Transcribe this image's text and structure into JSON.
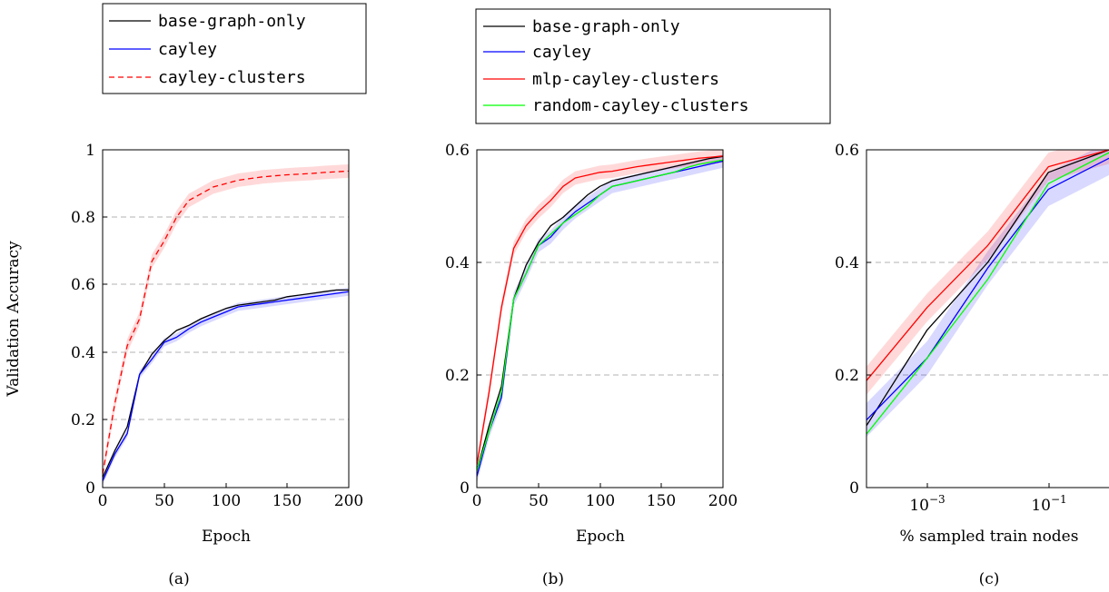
{
  "figure": {
    "ylabel": "Validation Accuracy"
  },
  "colors": {
    "base": "#000000",
    "cayley": "#0000ff",
    "red": "#ff0000",
    "green": "#00ff00",
    "grid": "#b3b3b3"
  },
  "chart_data": [
    {
      "type": "line",
      "panel_label": "(a)",
      "xlabel": "Epoch",
      "ylabel": "Validation Accuracy",
      "xlim": [
        0,
        200
      ],
      "ylim": [
        0,
        1
      ],
      "xticks": [
        0,
        50,
        100,
        150,
        200
      ],
      "xtick_labels": [
        "0",
        "50",
        "100",
        "150",
        "200"
      ],
      "yticks": [
        0,
        0.2,
        0.4,
        0.6,
        0.8,
        1
      ],
      "ytick_labels": [
        "0",
        "0.2",
        "0.4",
        "0.6",
        "0.8",
        "1"
      ],
      "grid": "horizontal dashed",
      "legend_position": "above",
      "series": [
        {
          "name": "base-graph-only",
          "color": "#000000",
          "style": "solid",
          "x": [
            0,
            10,
            20,
            30,
            40,
            50,
            60,
            70,
            80,
            90,
            100,
            110,
            120,
            130,
            140,
            150,
            160,
            170,
            180,
            190,
            200
          ],
          "y": [
            0.03,
            0.11,
            0.18,
            0.335,
            0.395,
            0.435,
            0.465,
            0.48,
            0.5,
            0.515,
            0.53,
            0.54,
            0.545,
            0.55,
            0.555,
            0.565,
            0.57,
            0.575,
            0.58,
            0.585,
            0.585
          ]
        },
        {
          "name": "cayley",
          "color": "#0000ff",
          "style": "solid",
          "x": [
            0,
            10,
            20,
            30,
            40,
            50,
            60,
            70,
            80,
            90,
            100,
            110,
            120,
            130,
            140,
            150,
            160,
            170,
            180,
            190,
            200
          ],
          "y": [
            0.02,
            0.1,
            0.16,
            0.335,
            0.38,
            0.43,
            0.445,
            0.47,
            0.49,
            0.505,
            0.52,
            0.535,
            0.54,
            0.545,
            0.55,
            0.555,
            0.56,
            0.565,
            0.57,
            0.575,
            0.58
          ],
          "band": 0.012
        },
        {
          "name": "cayley-clusters",
          "color": "#ff0000",
          "style": "dashed",
          "x": [
            0,
            10,
            20,
            30,
            40,
            50,
            60,
            70,
            80,
            90,
            100,
            110,
            120,
            130,
            140,
            150,
            160,
            170,
            180,
            190,
            200
          ],
          "y": [
            0.04,
            0.25,
            0.42,
            0.5,
            0.67,
            0.73,
            0.8,
            0.85,
            0.87,
            0.89,
            0.9,
            0.91,
            0.915,
            0.92,
            0.923,
            0.926,
            0.928,
            0.93,
            0.933,
            0.935,
            0.937
          ],
          "band": 0.02
        }
      ]
    },
    {
      "type": "line",
      "panel_label": "(b)",
      "xlabel": "Epoch",
      "xlim": [
        0,
        200
      ],
      "ylim": [
        0,
        0.6
      ],
      "xticks": [
        0,
        50,
        100,
        150,
        200
      ],
      "xtick_labels": [
        "0",
        "50",
        "100",
        "150",
        "200"
      ],
      "yticks": [
        0,
        0.2,
        0.4,
        0.6
      ],
      "ytick_labels": [
        "0",
        "0.2",
        "0.4",
        "0.6"
      ],
      "grid": "horizontal dashed",
      "legend_position": "above",
      "series": [
        {
          "name": "base-graph-only",
          "color": "#000000",
          "style": "solid",
          "x": [
            0,
            10,
            20,
            30,
            40,
            50,
            60,
            70,
            80,
            90,
            100,
            110,
            120,
            130,
            140,
            150,
            160,
            170,
            180,
            190,
            200
          ],
          "y": [
            0.03,
            0.11,
            0.18,
            0.335,
            0.395,
            0.435,
            0.465,
            0.48,
            0.5,
            0.52,
            0.535,
            0.545,
            0.55,
            0.555,
            0.56,
            0.565,
            0.57,
            0.575,
            0.58,
            0.585,
            0.588
          ]
        },
        {
          "name": "cayley",
          "color": "#0000ff",
          "style": "solid",
          "x": [
            0,
            10,
            20,
            30,
            40,
            50,
            60,
            70,
            80,
            90,
            100,
            110,
            120,
            130,
            140,
            150,
            160,
            170,
            180,
            190,
            200
          ],
          "y": [
            0.02,
            0.1,
            0.16,
            0.335,
            0.38,
            0.43,
            0.445,
            0.47,
            0.49,
            0.505,
            0.52,
            0.535,
            0.54,
            0.545,
            0.55,
            0.555,
            0.56,
            0.565,
            0.57,
            0.575,
            0.58
          ],
          "band": 0.012
        },
        {
          "name": "mlp-cayley-clusters",
          "color": "#ff0000",
          "style": "solid",
          "x": [
            0,
            10,
            20,
            30,
            40,
            50,
            60,
            70,
            80,
            90,
            100,
            110,
            120,
            130,
            140,
            150,
            160,
            170,
            180,
            190,
            200
          ],
          "y": [
            0.04,
            0.17,
            0.32,
            0.425,
            0.465,
            0.49,
            0.51,
            0.535,
            0.55,
            0.555,
            0.56,
            0.562,
            0.566,
            0.57,
            0.573,
            0.576,
            0.579,
            0.582,
            0.585,
            0.587,
            0.589
          ],
          "band": 0.012
        },
        {
          "name": "random-cayley-clusters",
          "color": "#00ff00",
          "style": "solid",
          "x": [
            0,
            10,
            20,
            30,
            40,
            50,
            60,
            70,
            80,
            90,
            100,
            110,
            120,
            130,
            140,
            150,
            160,
            170,
            180,
            190,
            200
          ],
          "y": [
            0.03,
            0.1,
            0.17,
            0.335,
            0.38,
            0.43,
            0.45,
            0.47,
            0.485,
            0.5,
            0.52,
            0.535,
            0.54,
            0.545,
            0.55,
            0.555,
            0.56,
            0.568,
            0.574,
            0.578,
            0.582
          ]
        }
      ]
    },
    {
      "type": "line",
      "panel_label": "(c)",
      "xlabel": "% sampled train nodes",
      "xscale": "log",
      "xlim": [
        0.0001,
        1
      ],
      "ylim": [
        0,
        0.6
      ],
      "xticks": [
        0.001,
        0.1
      ],
      "xtick_labels": [
        "10",
        "10"
      ],
      "xtick_exponents": [
        "−3",
        "−1"
      ],
      "yticks": [
        0,
        0.2,
        0.4,
        0.6
      ],
      "ytick_labels": [
        "0",
        "0.2",
        "0.4",
        "0.6"
      ],
      "grid": "horizontal dashed",
      "series": [
        {
          "name": "base-graph-only",
          "color": "#000000",
          "style": "solid",
          "x": [
            0.0001,
            0.001,
            0.01,
            0.1,
            1
          ],
          "y": [
            0.11,
            0.28,
            0.4,
            0.56,
            0.6
          ]
        },
        {
          "name": "cayley",
          "color": "#0000ff",
          "style": "solid",
          "x": [
            0.0001,
            0.001,
            0.01,
            0.1,
            1
          ],
          "y": [
            0.12,
            0.23,
            0.39,
            0.53,
            0.585
          ],
          "band": 0.03
        },
        {
          "name": "mlp-cayley-clusters",
          "color": "#ff0000",
          "style": "solid",
          "x": [
            0.0001,
            0.001,
            0.01,
            0.1,
            1
          ],
          "y": [
            0.19,
            0.32,
            0.43,
            0.57,
            0.6
          ],
          "band": 0.025
        },
        {
          "name": "random-cayley-clusters",
          "color": "#00ff00",
          "style": "solid",
          "x": [
            0.0001,
            0.001,
            0.01,
            0.1,
            1
          ],
          "y": [
            0.095,
            0.23,
            0.37,
            0.54,
            0.595
          ]
        }
      ]
    }
  ]
}
